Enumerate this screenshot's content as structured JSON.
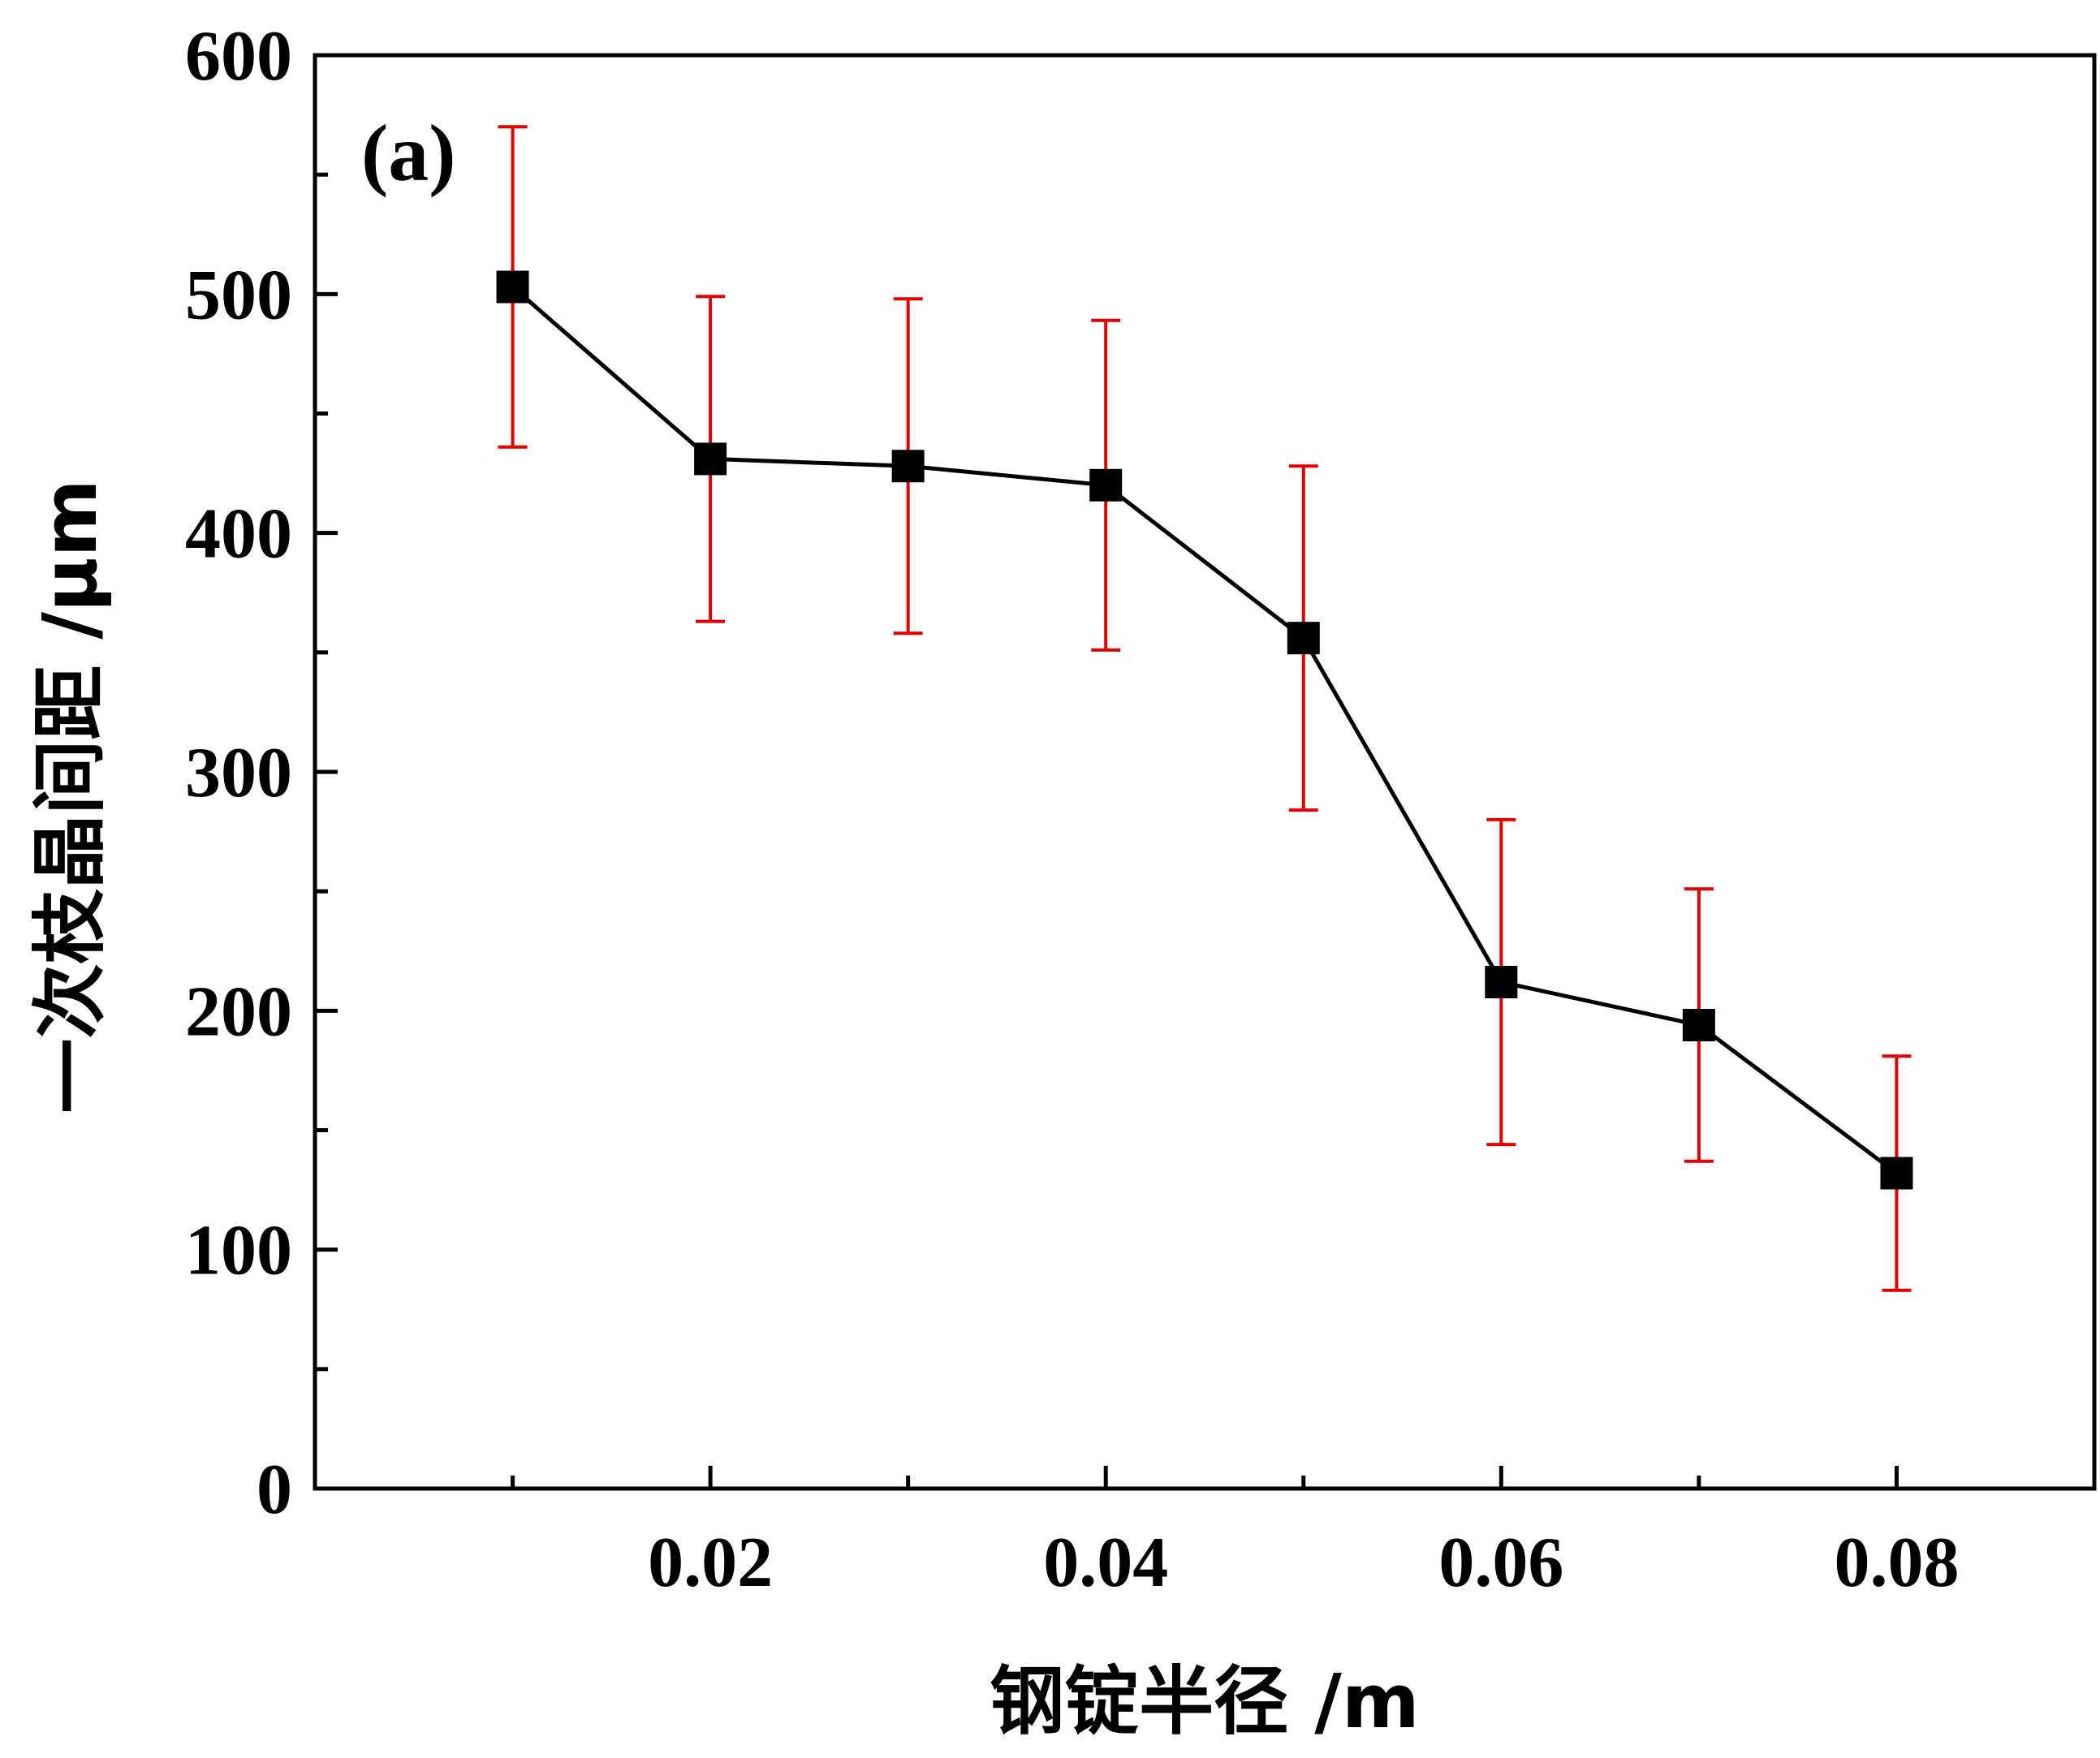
{
  "chart_data": {
    "type": "line",
    "panel_label": "(a)",
    "xlabel": "钢锭半径 /m",
    "ylabel": "一次枝晶间距 /μm",
    "xlim": [
      0.0,
      0.09
    ],
    "ylim": [
      0,
      600
    ],
    "x_major_ticks": [
      0.02,
      0.04,
      0.06,
      0.08
    ],
    "x_minor_ticks": [
      0.01,
      0.03,
      0.05,
      0.07
    ],
    "x_tick_labels": [
      "0.02",
      "0.04",
      "0.06",
      "0.08"
    ],
    "y_major_ticks": [
      0,
      100,
      200,
      300,
      400,
      500,
      600
    ],
    "y_minor_ticks": [
      50,
      150,
      250,
      350,
      450,
      550
    ],
    "y_tick_labels": [
      "0",
      "100",
      "200",
      "300",
      "400",
      "500",
      "600"
    ],
    "grid": false,
    "series": [
      {
        "x": [
          0.01,
          0.02,
          0.03,
          0.04,
          0.05,
          0.06,
          0.07,
          0.08
        ],
        "y": [
          503,
          431,
          428,
          420,
          356,
          212,
          194,
          132
        ],
        "error": [
          67,
          68,
          70,
          69,
          72,
          68,
          57,
          49
        ],
        "marker": "square",
        "line_color": "#000000",
        "error_color": "#e00000"
      }
    ]
  }
}
